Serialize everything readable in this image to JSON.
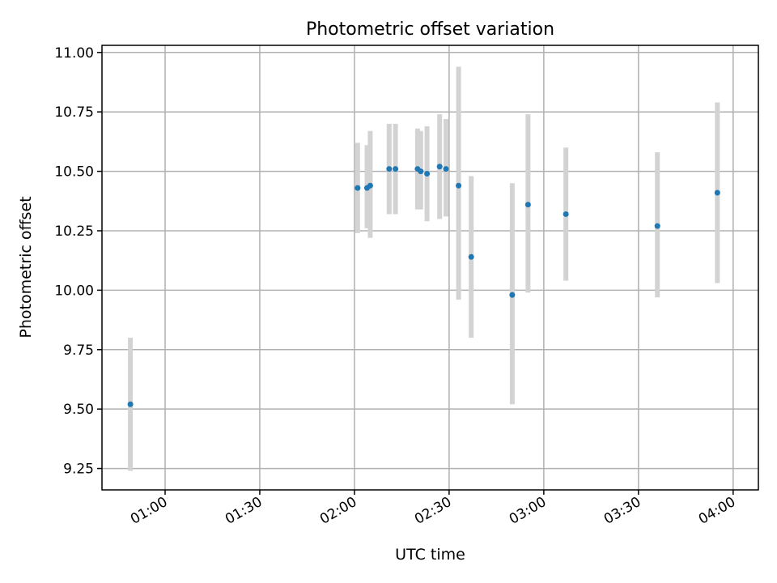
{
  "chart_data": {
    "type": "scatter",
    "title": "Photometric offset variation",
    "xlabel": "UTC time",
    "ylabel": "Photometric offset",
    "grid": true,
    "x_ticks": [
      "01:00",
      "01:30",
      "02:00",
      "02:30",
      "03:00",
      "03:30",
      "04:00"
    ],
    "y_ticks": [
      "9.25",
      "9.50",
      "9.75",
      "10.00",
      "10.25",
      "10.50",
      "10.75",
      "11.00"
    ],
    "xlim": [
      "00:40",
      "04:08"
    ],
    "ylim": [
      9.16,
      11.03
    ],
    "colors": {
      "point": "#1f77b4",
      "errorbar": "#d3d3d3"
    },
    "points": [
      {
        "x": "00:49",
        "y": 9.52,
        "ylow": 9.24,
        "yhigh": 9.8
      },
      {
        "x": "02:01",
        "y": 10.43,
        "ylow": 10.24,
        "yhigh": 10.62
      },
      {
        "x": "02:04",
        "y": 10.43,
        "ylow": 10.26,
        "yhigh": 10.61
      },
      {
        "x": "02:05",
        "y": 10.44,
        "ylow": 10.22,
        "yhigh": 10.67
      },
      {
        "x": "02:11",
        "y": 10.51,
        "ylow": 10.32,
        "yhigh": 10.7
      },
      {
        "x": "02:13",
        "y": 10.51,
        "ylow": 10.32,
        "yhigh": 10.7
      },
      {
        "x": "02:20",
        "y": 10.51,
        "ylow": 10.34,
        "yhigh": 10.68
      },
      {
        "x": "02:21",
        "y": 10.5,
        "ylow": 10.34,
        "yhigh": 10.67
      },
      {
        "x": "02:23",
        "y": 10.49,
        "ylow": 10.29,
        "yhigh": 10.69
      },
      {
        "x": "02:27",
        "y": 10.52,
        "ylow": 10.3,
        "yhigh": 10.74
      },
      {
        "x": "02:29",
        "y": 10.51,
        "ylow": 10.31,
        "yhigh": 10.72
      },
      {
        "x": "02:33",
        "y": 10.44,
        "ylow": 9.96,
        "yhigh": 10.94
      },
      {
        "x": "02:37",
        "y": 10.14,
        "ylow": 9.8,
        "yhigh": 10.48
      },
      {
        "x": "02:50",
        "y": 9.98,
        "ylow": 9.52,
        "yhigh": 10.45
      },
      {
        "x": "02:55",
        "y": 10.36,
        "ylow": 9.99,
        "yhigh": 10.74
      },
      {
        "x": "03:07",
        "y": 10.32,
        "ylow": 10.04,
        "yhigh": 10.6
      },
      {
        "x": "03:36",
        "y": 10.27,
        "ylow": 9.97,
        "yhigh": 10.58
      },
      {
        "x": "03:55",
        "y": 10.41,
        "ylow": 10.03,
        "yhigh": 10.79
      }
    ]
  }
}
